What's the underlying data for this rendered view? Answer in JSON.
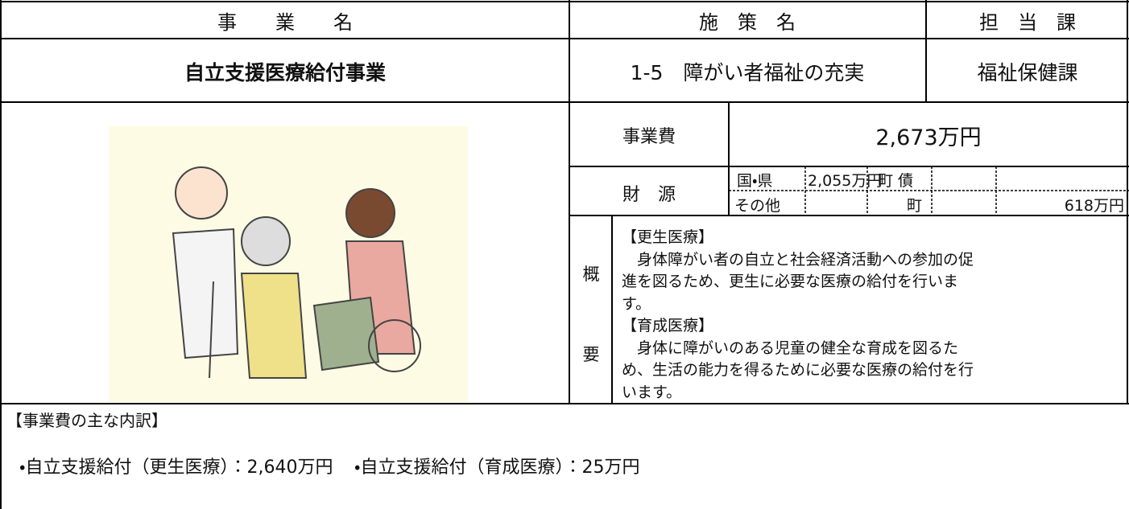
{
  "header": {
    "business_name_label": "事　　業　　名",
    "policy_label": "施　策　名",
    "department_label": "担　当　課"
  },
  "row": {
    "business_name": "自立支援医療給付事業",
    "policy": "1-5　障がい者福祉の充実",
    "department": "福祉保健課"
  },
  "cost": {
    "label": "事業費",
    "value": "2,673万円"
  },
  "funding": {
    "label": "財　源",
    "national_label": "国・県",
    "national": "2,055万円",
    "town_bond_label": "町 債",
    "other_label": "その他",
    "town_label": "町",
    "town": "618万円"
  },
  "summary": {
    "label_top": "概",
    "label_bottom": "要",
    "lines": [
      "【更生医療】",
      "　身体障がい者の自立と社会経済活動への参加の促",
      "進を図るため、更生に必要な医療の給付を行いま",
      "す。",
      "【育成医療】",
      "　身体に障がいのある児童の健全な育成を図るた",
      "め、生活の能力を得るために必要な医療の給付を行",
      "います。"
    ]
  },
  "breakdown": {
    "heading": "【事業費の主な内訳】",
    "items": [
      "・自立支援給付（更生医療）：2,640万円",
      "・自立支援給付（育成医療）：25万円"
    ]
  }
}
